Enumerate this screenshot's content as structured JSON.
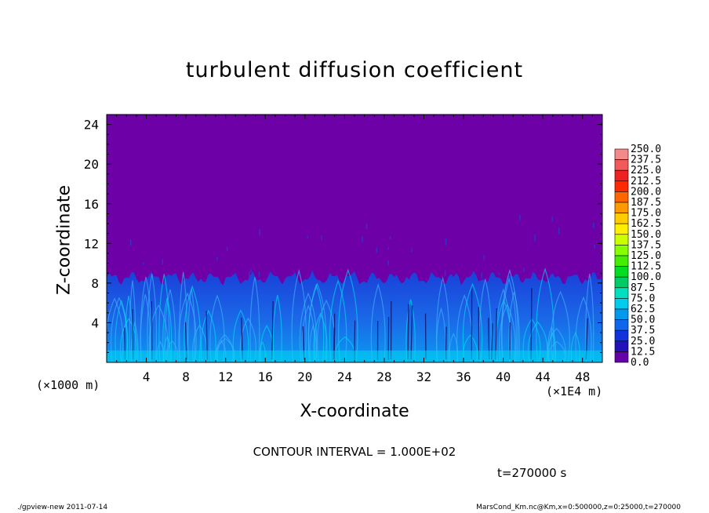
{
  "chart_data": {
    "type": "heatmap",
    "title": "turbulent diffusion coefficient",
    "xlabel": "X-coordinate",
    "ylabel": "Z-coordinate",
    "x_unit_label": "(×1E4 m)",
    "y_unit_label": "(×1000 m)",
    "xlim": [
      0,
      50
    ],
    "ylim": [
      0,
      25
    ],
    "x_ticks": [
      "4",
      "8",
      "12",
      "16",
      "20",
      "24",
      "28",
      "32",
      "36",
      "40",
      "44",
      "48"
    ],
    "y_ticks": [
      "4",
      "8",
      "12",
      "16",
      "20",
      "24"
    ],
    "colorbar": {
      "levels": [
        "250.0",
        "237.5",
        "225.0",
        "212.5",
        "200.0",
        "187.5",
        "175.0",
        "162.5",
        "150.0",
        "137.5",
        "125.0",
        "112.5",
        "100.0",
        "87.5",
        "75.0",
        "62.5",
        "50.0",
        "37.5",
        "25.0",
        "12.5",
        "0.0"
      ],
      "colors": [
        "#f28a8a",
        "#f25a5a",
        "#ee2222",
        "#ff2a00",
        "#ff6600",
        "#ff9900",
        "#ffcc00",
        "#ffee00",
        "#ccff00",
        "#88ff00",
        "#44ee00",
        "#00dd22",
        "#00cc66",
        "#00e0c0",
        "#00ccee",
        "#0099ee",
        "#1166ee",
        "#1133dd",
        "#2211bb",
        "#6600aa"
      ]
    },
    "field_description_levels": {
      "background": "0.0",
      "turbulent_layer_top_z": 8.5,
      "turbulent_layer_range": "12.5-75.0"
    },
    "contour_interval": "CONTOUR INTERVAL = 1.000E+02",
    "time": "t=270000 s",
    "grid": false,
    "legend": "right"
  },
  "footer": {
    "left": "./gpview-new   2011-07-14",
    "right": "MarsCond_Km.nc@Km,x=0:500000,z=0:25000,t=270000"
  },
  "colors": {
    "background_field": "#6e00a8",
    "cyan_streak": "#00d8f0"
  }
}
